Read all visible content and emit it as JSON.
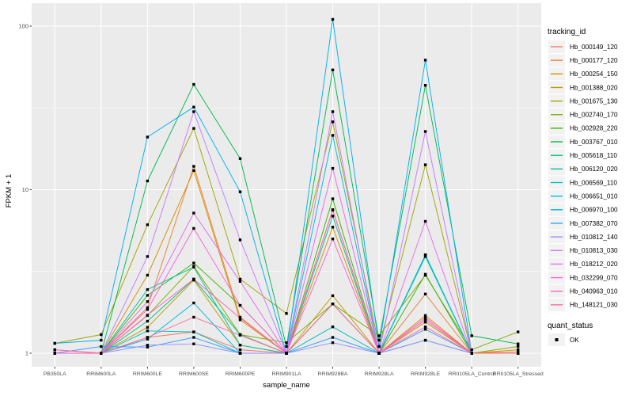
{
  "figure": {
    "background": "#ffffff",
    "panel_background": "#ebebeb",
    "gridline_color": "#ffffff",
    "axis_text_color": "#4d4d4d",
    "tick_mark_color": "#333333"
  },
  "legend": {
    "tracking_title": "tracking_id",
    "quant_title": "quant_status",
    "quant_items": [
      {
        "label": "OK",
        "marker": "black-square"
      }
    ]
  },
  "chart_data": {
    "type": "line",
    "title": "",
    "xlabel": "sample_name",
    "ylabel": "FPKM + 1",
    "y_scale": "log10",
    "ylim": [
      0.82,
      140
    ],
    "y_major_ticks": [
      1,
      10,
      100
    ],
    "y_tick_labels": [
      "1",
      "10",
      "100"
    ],
    "y_minor_ticks": [
      3.1623,
      31.623
    ],
    "grid": true,
    "legend_position": "right",
    "marker": {
      "shape": "square",
      "color": "#000000",
      "legend_label": "OK"
    },
    "categories": [
      "PB350LA",
      "RRIM600LA",
      "RRIM600LE",
      "RRIM600SE",
      "RRIM600PE",
      "RRIM901LA",
      "RRIM928BA",
      "RRIM928LA",
      "RRIM928LE",
      "RRII105LA_Control",
      "RRII105LA_Stressed"
    ],
    "series": [
      {
        "name": "Hb_000149_120",
        "color": "#F8766D",
        "values": [
          1.0,
          1.0,
          1.25,
          1.35,
          1.05,
          1.0,
          2.0,
          1.0,
          1.6,
          1.0,
          1.0
        ]
      },
      {
        "name": "Hb_000177_120",
        "color": "#EA8331",
        "values": [
          1.0,
          1.0,
          1.9,
          13.9,
          1.66,
          1.0,
          7.5,
          1.0,
          2.3,
          1.0,
          1.02
        ]
      },
      {
        "name": "Hb_000254_150",
        "color": "#D89000",
        "values": [
          1.0,
          1.0,
          3.0,
          13.1,
          1.6,
          1.0,
          5.9,
          1.0,
          1.7,
          1.0,
          1.0
        ]
      },
      {
        "name": "Hb_001388_020",
        "color": "#C09B00",
        "values": [
          1.0,
          1.0,
          1.44,
          2.8,
          1.12,
          1.0,
          2.25,
          1.0,
          1.55,
          1.0,
          1.05
        ]
      },
      {
        "name": "Hb_001675_130",
        "color": "#A3A500",
        "values": [
          1.15,
          1.3,
          6.1,
          23.7,
          2.84,
          1.75,
          26.0,
          1.1,
          14.2,
          1.0,
          1.1
        ]
      },
      {
        "name": "Hb_002740_170",
        "color": "#7CAE00",
        "values": [
          1.0,
          1.0,
          1.7,
          3.4,
          1.3,
          1.16,
          2.0,
          1.28,
          3.0,
          1.05,
          1.35
        ]
      },
      {
        "name": "Hb_002928_220",
        "color": "#39B600",
        "values": [
          1.0,
          1.0,
          2.26,
          3.56,
          1.96,
          1.0,
          8.8,
          1.0,
          3.04,
          1.0,
          1.0
        ]
      },
      {
        "name": "Hb_003767_010",
        "color": "#00BB4E",
        "values": [
          1.0,
          1.0,
          11.3,
          44.0,
          15.5,
          1.1,
          54.0,
          1.2,
          43.5,
          1.28,
          1.14
        ]
      },
      {
        "name": "Hb_005618_110",
        "color": "#00BF7D",
        "values": [
          1.0,
          1.0,
          1.57,
          2.84,
          1.3,
          1.0,
          2.0,
          1.0,
          3.98,
          1.0,
          1.0
        ]
      },
      {
        "name": "Hb_006120_020",
        "color": "#00C1A3",
        "values": [
          1.0,
          1.0,
          2.45,
          3.36,
          1.12,
          1.0,
          6.9,
          1.0,
          3.9,
          1.0,
          1.0
        ]
      },
      {
        "name": "Hb_006569_110",
        "color": "#00BFC4",
        "values": [
          1.0,
          1.0,
          1.37,
          1.35,
          1.0,
          1.0,
          1.45,
          1.0,
          1.2,
          1.0,
          1.0
        ]
      },
      {
        "name": "Hb_006651_010",
        "color": "#00BAE0",
        "values": [
          1.0,
          1.0,
          1.22,
          2.03,
          1.0,
          1.0,
          21.5,
          1.0,
          4.0,
          1.0,
          1.0
        ]
      },
      {
        "name": "Hb_006970_100",
        "color": "#00B0F6",
        "values": [
          1.15,
          1.2,
          21.0,
          32.0,
          9.7,
          1.0,
          110.0,
          1.1,
          62.0,
          1.0,
          1.0
        ]
      },
      {
        "name": "Hb_007382_070",
        "color": "#35A2FF",
        "values": [
          1.0,
          1.1,
          1.09,
          1.25,
          1.0,
          1.0,
          1.25,
          1.0,
          1.4,
          1.0,
          1.0
        ]
      },
      {
        "name": "Hb_010812_140",
        "color": "#9590FF",
        "values": [
          1.0,
          1.0,
          1.12,
          1.14,
          1.0,
          1.0,
          1.16,
          1.0,
          1.2,
          1.0,
          1.0
        ]
      },
      {
        "name": "Hb_010813_030",
        "color": "#C77CFF",
        "values": [
          1.0,
          1.0,
          3.9,
          30.0,
          4.93,
          1.0,
          30.0,
          1.0,
          22.7,
          1.0,
          1.0
        ]
      },
      {
        "name": "Hb_018212_020",
        "color": "#E76BF3",
        "values": [
          1.05,
          1.0,
          2.07,
          7.2,
          2.75,
          1.0,
          13.5,
          1.0,
          6.4,
          1.0,
          1.0
        ]
      },
      {
        "name": "Hb_032299_070",
        "color": "#FA62DB",
        "values": [
          1.0,
          1.0,
          1.85,
          5.8,
          1.96,
          1.0,
          5.0,
          1.0,
          1.6,
          1.0,
          1.0
        ]
      },
      {
        "name": "Hb_040963_010",
        "color": "#FF62BC",
        "values": [
          1.0,
          1.0,
          1.71,
          2.84,
          1.64,
          1.0,
          7.55,
          1.0,
          1.65,
          1.0,
          1.0
        ]
      },
      {
        "name": "Hb_148121_030",
        "color": "#FF6A98",
        "values": [
          1.05,
          1.0,
          1.25,
          1.66,
          1.29,
          1.0,
          2.0,
          1.0,
          1.45,
          1.0,
          1.0
        ]
      }
    ]
  }
}
